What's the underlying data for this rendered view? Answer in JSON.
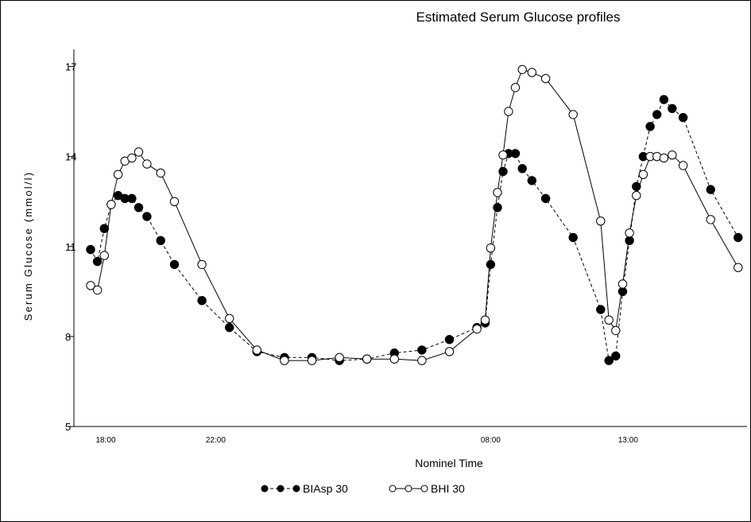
{
  "chart_data": {
    "type": "line",
    "title": "Estimated Serum Glucose profiles",
    "xlabel": "Nominel Time",
    "ylabel": "Serum Glucose (mmol/l)",
    "ylim": [
      5,
      17
    ],
    "yticks": [
      5,
      8,
      11,
      14,
      17
    ],
    "xlim": [
      17.5,
      42
    ],
    "xticks": [
      18,
      22,
      32,
      37,
      42
    ],
    "xtick_labels": [
      "18:00",
      "22:00",
      "08:00",
      "13:00",
      "18:00"
    ],
    "grid": false,
    "legend": "bottom-center",
    "series": [
      {
        "name": "BIAsp 30",
        "marker": "filled-circle",
        "line": "dashed",
        "x": [
          17.45,
          17.7,
          17.95,
          18.2,
          18.45,
          18.7,
          18.95,
          19.2,
          19.5,
          20.0,
          20.5,
          21.5,
          22.5,
          23.5,
          24.5,
          25.5,
          26.5,
          27.5,
          28.5,
          29.5,
          30.5,
          31.5,
          31.8,
          32.0,
          32.25,
          32.45,
          32.65,
          32.9,
          33.15,
          33.5,
          34.0,
          35.0,
          36.0,
          36.3,
          36.55,
          36.8,
          37.05,
          37.3,
          37.55,
          37.8,
          38.05,
          38.3,
          38.6,
          39.0,
          40.0,
          41.0
        ],
        "y": [
          10.9,
          10.5,
          11.6,
          12.4,
          12.7,
          12.6,
          12.6,
          12.3,
          12.0,
          11.2,
          10.4,
          9.2,
          8.3,
          7.5,
          7.3,
          7.3,
          7.2,
          7.25,
          7.45,
          7.55,
          7.9,
          8.3,
          8.45,
          10.4,
          12.3,
          13.5,
          14.1,
          14.1,
          13.6,
          13.2,
          12.6,
          11.3,
          8.9,
          7.2,
          7.35,
          9.5,
          11.2,
          13.0,
          14.0,
          15.0,
          15.4,
          15.9,
          15.6,
          15.3,
          12.9,
          11.3
        ]
      },
      {
        "name": "BHI 30",
        "marker": "open-circle",
        "line": "solid",
        "x": [
          17.45,
          17.7,
          17.95,
          18.2,
          18.45,
          18.7,
          18.95,
          19.2,
          19.5,
          20.0,
          20.5,
          21.5,
          22.5,
          23.5,
          24.5,
          25.5,
          26.5,
          27.5,
          28.5,
          29.5,
          30.5,
          31.5,
          31.8,
          32.0,
          32.25,
          32.45,
          32.65,
          32.9,
          33.15,
          33.5,
          34.0,
          35.0,
          36.0,
          36.3,
          36.55,
          36.8,
          37.05,
          37.3,
          37.55,
          37.8,
          38.05,
          38.3,
          38.6,
          39.0,
          40.0,
          41.0
        ],
        "y": [
          9.7,
          9.55,
          10.7,
          12.4,
          13.4,
          13.85,
          13.95,
          14.15,
          13.75,
          13.45,
          12.5,
          10.4,
          8.6,
          7.55,
          7.2,
          7.2,
          7.3,
          7.25,
          7.25,
          7.2,
          7.5,
          8.25,
          8.55,
          10.95,
          12.8,
          14.05,
          15.5,
          16.3,
          16.9,
          16.8,
          16.6,
          15.4,
          11.85,
          8.55,
          8.2,
          9.75,
          11.45,
          12.7,
          13.4,
          14.0,
          14.0,
          13.95,
          14.05,
          13.7,
          11.9,
          10.3
        ]
      }
    ]
  }
}
